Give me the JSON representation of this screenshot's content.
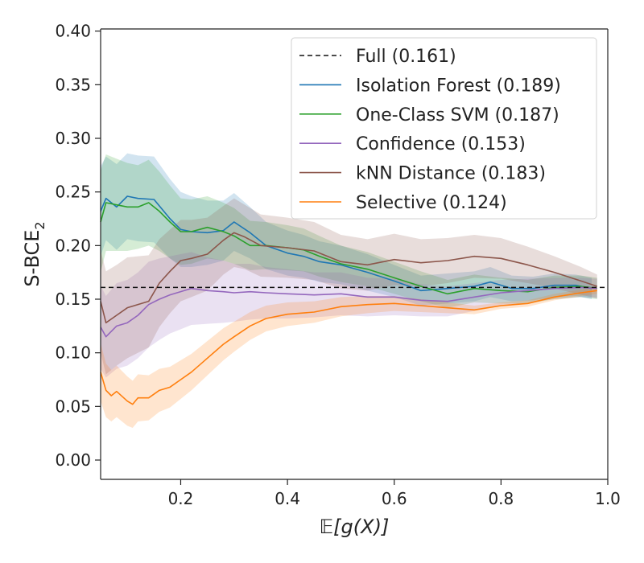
{
  "chart_data": {
    "type": "line",
    "title": "",
    "xlabel": "𝔼[g(X)]",
    "ylabel": "S-BCE",
    "ylabel_subscript": "2",
    "xlim": [
      0.05,
      1.0
    ],
    "ylim": [
      -0.018,
      0.402
    ],
    "xticks": [
      0.2,
      0.4,
      0.6,
      0.8,
      1.0
    ],
    "xtick_labels": [
      "0.2",
      "0.4",
      "0.6",
      "0.8",
      "1.0"
    ],
    "yticks": [
      0.0,
      0.05,
      0.1,
      0.15,
      0.2,
      0.25,
      0.3,
      0.35,
      0.4
    ],
    "ytick_labels": [
      "0.00",
      "0.05",
      "0.10",
      "0.15",
      "0.20",
      "0.25",
      "0.30",
      "0.35",
      "0.40"
    ],
    "legend_position": "top-right",
    "reference_line": {
      "name": "Full (0.161)",
      "y": 0.161,
      "color": "#111111",
      "style": "dashed"
    },
    "series": [
      {
        "name": "Isolation Forest (0.189)",
        "color": "#1f77b4",
        "x": [
          0.05,
          0.06,
          0.08,
          0.1,
          0.12,
          0.15,
          0.18,
          0.2,
          0.22,
          0.25,
          0.28,
          0.3,
          0.33,
          0.36,
          0.4,
          0.43,
          0.46,
          0.5,
          0.55,
          0.6,
          0.65,
          0.7,
          0.75,
          0.78,
          0.82,
          0.86,
          0.9,
          0.94,
          0.97
        ],
        "values": [
          0.232,
          0.244,
          0.236,
          0.246,
          0.244,
          0.243,
          0.225,
          0.215,
          0.213,
          0.212,
          0.214,
          0.222,
          0.212,
          0.2,
          0.193,
          0.19,
          0.185,
          0.182,
          0.175,
          0.167,
          0.158,
          0.16,
          0.162,
          0.166,
          0.16,
          0.16,
          0.163,
          0.163,
          0.16
        ],
        "lower": [
          0.19,
          0.205,
          0.196,
          0.206,
          0.204,
          0.203,
          0.188,
          0.18,
          0.18,
          0.182,
          0.186,
          0.195,
          0.188,
          0.178,
          0.172,
          0.17,
          0.166,
          0.164,
          0.158,
          0.152,
          0.144,
          0.146,
          0.148,
          0.152,
          0.148,
          0.149,
          0.152,
          0.153,
          0.15
        ],
        "upper": [
          0.274,
          0.283,
          0.276,
          0.286,
          0.284,
          0.283,
          0.262,
          0.25,
          0.246,
          0.242,
          0.242,
          0.249,
          0.236,
          0.222,
          0.214,
          0.21,
          0.204,
          0.2,
          0.192,
          0.182,
          0.172,
          0.174,
          0.176,
          0.18,
          0.172,
          0.171,
          0.174,
          0.173,
          0.17
        ]
      },
      {
        "name": "One-Class SVM (0.187)",
        "color": "#2ca02c",
        "x": [
          0.05,
          0.06,
          0.08,
          0.1,
          0.12,
          0.14,
          0.16,
          0.18,
          0.2,
          0.22,
          0.25,
          0.28,
          0.3,
          0.33,
          0.36,
          0.4,
          0.43,
          0.46,
          0.5,
          0.55,
          0.6,
          0.65,
          0.7,
          0.75,
          0.8,
          0.85,
          0.9,
          0.95,
          0.98
        ],
        "values": [
          0.222,
          0.24,
          0.238,
          0.236,
          0.236,
          0.24,
          0.232,
          0.222,
          0.213,
          0.213,
          0.217,
          0.213,
          0.209,
          0.2,
          0.2,
          0.198,
          0.196,
          0.19,
          0.183,
          0.178,
          0.17,
          0.162,
          0.155,
          0.16,
          0.158,
          0.157,
          0.161,
          0.162,
          0.16
        ],
        "lower": [
          0.175,
          0.195,
          0.195,
          0.195,
          0.197,
          0.2,
          0.195,
          0.188,
          0.182,
          0.183,
          0.188,
          0.186,
          0.183,
          0.177,
          0.178,
          0.177,
          0.176,
          0.171,
          0.166,
          0.162,
          0.155,
          0.148,
          0.142,
          0.147,
          0.146,
          0.146,
          0.15,
          0.152,
          0.15
        ],
        "upper": [
          0.27,
          0.285,
          0.281,
          0.277,
          0.275,
          0.28,
          0.269,
          0.256,
          0.244,
          0.243,
          0.246,
          0.24,
          0.235,
          0.223,
          0.222,
          0.219,
          0.216,
          0.209,
          0.2,
          0.194,
          0.185,
          0.176,
          0.168,
          0.173,
          0.17,
          0.168,
          0.172,
          0.172,
          0.17
        ]
      },
      {
        "name": "Confidence (0.153)",
        "color": "#9467bd",
        "x": [
          0.05,
          0.06,
          0.08,
          0.1,
          0.12,
          0.14,
          0.16,
          0.18,
          0.2,
          0.22,
          0.25,
          0.28,
          0.3,
          0.33,
          0.36,
          0.4,
          0.45,
          0.5,
          0.55,
          0.6,
          0.65,
          0.7,
          0.75,
          0.8,
          0.85,
          0.9,
          0.95,
          0.98
        ],
        "values": [
          0.124,
          0.115,
          0.125,
          0.128,
          0.135,
          0.145,
          0.15,
          0.154,
          0.157,
          0.16,
          0.158,
          0.157,
          0.156,
          0.157,
          0.156,
          0.155,
          0.154,
          0.155,
          0.152,
          0.152,
          0.149,
          0.148,
          0.152,
          0.156,
          0.158,
          0.16,
          0.161,
          0.16
        ],
        "lower": [
          0.085,
          0.077,
          0.085,
          0.088,
          0.095,
          0.105,
          0.112,
          0.118,
          0.122,
          0.126,
          0.127,
          0.128,
          0.129,
          0.131,
          0.132,
          0.132,
          0.133,
          0.135,
          0.134,
          0.135,
          0.134,
          0.134,
          0.139,
          0.144,
          0.147,
          0.15,
          0.152,
          0.151
        ],
        "upper": [
          0.163,
          0.153,
          0.165,
          0.168,
          0.175,
          0.185,
          0.188,
          0.19,
          0.192,
          0.194,
          0.189,
          0.186,
          0.183,
          0.183,
          0.18,
          0.178,
          0.175,
          0.175,
          0.17,
          0.169,
          0.164,
          0.162,
          0.165,
          0.168,
          0.169,
          0.17,
          0.17,
          0.169
        ]
      },
      {
        "name": "kNN Distance (0.183)",
        "color": "#8c564b",
        "x": [
          0.05,
          0.06,
          0.08,
          0.1,
          0.12,
          0.14,
          0.16,
          0.18,
          0.2,
          0.22,
          0.25,
          0.28,
          0.3,
          0.32,
          0.35,
          0.4,
          0.45,
          0.5,
          0.55,
          0.6,
          0.65,
          0.7,
          0.75,
          0.8,
          0.85,
          0.9,
          0.95,
          0.98
        ],
        "values": [
          0.148,
          0.128,
          0.135,
          0.142,
          0.145,
          0.148,
          0.165,
          0.176,
          0.186,
          0.188,
          0.192,
          0.205,
          0.212,
          0.208,
          0.2,
          0.198,
          0.195,
          0.185,
          0.182,
          0.187,
          0.184,
          0.186,
          0.19,
          0.188,
          0.182,
          0.175,
          0.167,
          0.162
        ],
        "lower": [
          0.1,
          0.08,
          0.088,
          0.095,
          0.1,
          0.105,
          0.124,
          0.137,
          0.148,
          0.152,
          0.158,
          0.173,
          0.18,
          0.178,
          0.171,
          0.17,
          0.168,
          0.16,
          0.158,
          0.163,
          0.162,
          0.165,
          0.17,
          0.169,
          0.165,
          0.16,
          0.154,
          0.151
        ],
        "upper": [
          0.196,
          0.176,
          0.182,
          0.189,
          0.19,
          0.191,
          0.206,
          0.215,
          0.224,
          0.224,
          0.226,
          0.237,
          0.244,
          0.238,
          0.229,
          0.226,
          0.222,
          0.21,
          0.206,
          0.211,
          0.206,
          0.207,
          0.21,
          0.207,
          0.199,
          0.19,
          0.18,
          0.173
        ]
      },
      {
        "name": "Selective (0.124)",
        "color": "#ff7f0e",
        "x": [
          0.05,
          0.06,
          0.07,
          0.08,
          0.1,
          0.11,
          0.12,
          0.14,
          0.16,
          0.18,
          0.2,
          0.22,
          0.25,
          0.28,
          0.3,
          0.33,
          0.36,
          0.4,
          0.45,
          0.5,
          0.55,
          0.6,
          0.65,
          0.7,
          0.75,
          0.8,
          0.85,
          0.9,
          0.95,
          0.98
        ],
        "values": [
          0.082,
          0.065,
          0.06,
          0.064,
          0.055,
          0.052,
          0.058,
          0.058,
          0.065,
          0.068,
          0.075,
          0.082,
          0.095,
          0.108,
          0.115,
          0.125,
          0.132,
          0.136,
          0.138,
          0.143,
          0.145,
          0.146,
          0.144,
          0.142,
          0.14,
          0.144,
          0.146,
          0.152,
          0.156,
          0.158
        ],
        "lower": [
          0.055,
          0.04,
          0.036,
          0.04,
          0.032,
          0.03,
          0.036,
          0.037,
          0.045,
          0.049,
          0.057,
          0.065,
          0.079,
          0.093,
          0.101,
          0.112,
          0.12,
          0.125,
          0.128,
          0.134,
          0.137,
          0.139,
          0.138,
          0.137,
          0.136,
          0.141,
          0.143,
          0.149,
          0.153,
          0.155
        ],
        "upper": [
          0.109,
          0.09,
          0.084,
          0.088,
          0.078,
          0.074,
          0.08,
          0.079,
          0.085,
          0.087,
          0.093,
          0.099,
          0.111,
          0.123,
          0.129,
          0.138,
          0.144,
          0.147,
          0.148,
          0.152,
          0.153,
          0.153,
          0.15,
          0.147,
          0.144,
          0.147,
          0.149,
          0.155,
          0.159,
          0.161
        ]
      }
    ]
  }
}
